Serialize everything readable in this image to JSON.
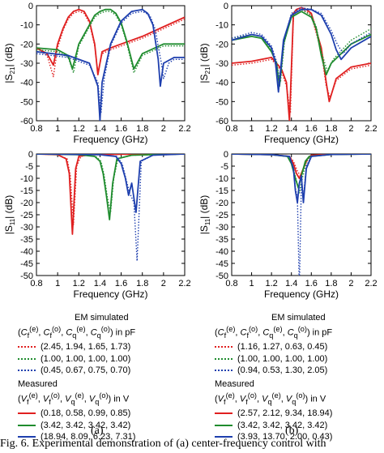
{
  "chart_data": [
    {
      "id": "a_s21",
      "type": "line",
      "xlabel": "Frequency (GHz)",
      "ylabel": "|S21| (dB)",
      "xlim": [
        0.8,
        2.2
      ],
      "ylim": [
        -60,
        0
      ],
      "xticks": [
        "0.8",
        "1",
        "1.2",
        "1.4",
        "1.6",
        "1.8",
        "2",
        "2.2"
      ],
      "yticks": [
        "0",
        "-10",
        "-20",
        "-30",
        "-40",
        "-50",
        "-60"
      ],
      "series": [
        {
          "color": "#e02020",
          "style": "solid",
          "x": [
            0.8,
            0.9,
            0.96,
            1.0,
            1.05,
            1.1,
            1.15,
            1.2,
            1.25,
            1.3,
            1.35,
            1.38,
            1.42,
            1.5,
            1.6,
            1.8,
            2.0,
            2.2
          ],
          "y": [
            -22,
            -25,
            -31,
            -20,
            -12,
            -6,
            -3,
            -2,
            -3,
            -8,
            -20,
            -36,
            -24,
            -22,
            -20,
            -16,
            -11,
            -6
          ]
        },
        {
          "color": "#e02020",
          "style": "dot",
          "x": [
            0.8,
            0.9,
            0.96,
            1.0,
            1.05,
            1.1,
            1.15,
            1.2,
            1.25,
            1.3,
            1.35,
            1.38,
            1.42,
            1.5,
            1.6,
            1.8,
            2.0,
            2.2
          ],
          "y": [
            -22,
            -26,
            -37,
            -22,
            -13,
            -7,
            -4,
            -3,
            -4,
            -9,
            -21,
            -35,
            -25,
            -23,
            -21,
            -17,
            -12,
            -7
          ]
        },
        {
          "color": "#1f8c2e",
          "style": "solid",
          "x": [
            0.8,
            1.0,
            1.1,
            1.14,
            1.2,
            1.3,
            1.35,
            1.4,
            1.45,
            1.5,
            1.55,
            1.6,
            1.65,
            1.72,
            1.8,
            2.0,
            2.2
          ],
          "y": [
            -22,
            -23,
            -26,
            -33,
            -20,
            -10,
            -5,
            -3,
            -2,
            -2,
            -4,
            -9,
            -18,
            -33,
            -25,
            -20,
            -20
          ]
        },
        {
          "color": "#1f8c2e",
          "style": "dot",
          "x": [
            0.8,
            1.0,
            1.1,
            1.15,
            1.2,
            1.3,
            1.35,
            1.4,
            1.45,
            1.5,
            1.55,
            1.6,
            1.65,
            1.72,
            1.8,
            2.0,
            2.2
          ],
          "y": [
            -23,
            -24,
            -27,
            -35,
            -21,
            -11,
            -6,
            -4,
            -3,
            -3,
            -5,
            -10,
            -19,
            -35,
            -26,
            -21,
            -21
          ]
        },
        {
          "color": "#1e3fae",
          "style": "solid",
          "x": [
            0.8,
            1.1,
            1.3,
            1.38,
            1.4,
            1.42,
            1.5,
            1.6,
            1.7,
            1.8,
            1.85,
            1.9,
            1.95,
            1.97,
            2.0,
            2.1,
            2.2
          ],
          "y": [
            -24,
            -26,
            -30,
            -42,
            -60,
            -40,
            -20,
            -8,
            -3,
            -2,
            -4,
            -10,
            -28,
            -42,
            -30,
            -27,
            -27
          ]
        },
        {
          "color": "#1e3fae",
          "style": "dot",
          "x": [
            0.8,
            1.1,
            1.3,
            1.38,
            1.41,
            1.44,
            1.5,
            1.6,
            1.7,
            1.8,
            1.87,
            1.92,
            1.98,
            2.0,
            2.05,
            2.1,
            2.2
          ],
          "y": [
            -25,
            -27,
            -31,
            -40,
            -56,
            -38,
            -21,
            -9,
            -4,
            -3,
            -5,
            -12,
            -30,
            -38,
            -30,
            -28,
            -28
          ]
        }
      ]
    },
    {
      "id": "b_s21",
      "type": "line",
      "xlabel": "Frequency (GHz)",
      "ylabel": "|S21| (dB)",
      "xlim": [
        0.8,
        2.2
      ],
      "ylim": [
        -60,
        0
      ],
      "xticks": [
        "0.8",
        "1",
        "1.2",
        "1.4",
        "1.6",
        "1.8",
        "2",
        "2.2"
      ],
      "yticks": [
        "0",
        "-10",
        "-20",
        "-30",
        "-40",
        "-50",
        "-60"
      ],
      "series": [
        {
          "color": "#e02020",
          "style": "solid",
          "x": [
            0.8,
            1.0,
            1.2,
            1.3,
            1.35,
            1.38,
            1.42,
            1.45,
            1.5,
            1.55,
            1.6,
            1.7,
            1.75,
            1.78,
            1.85,
            2.0,
            2.2
          ],
          "y": [
            -30,
            -29,
            -27,
            -33,
            -40,
            -60,
            -4,
            -2,
            -1,
            -2,
            -4,
            -22,
            -40,
            -50,
            -38,
            -32,
            -30
          ]
        },
        {
          "color": "#e02020",
          "style": "dot",
          "x": [
            0.8,
            1.0,
            1.2,
            1.3,
            1.35,
            1.39,
            1.42,
            1.45,
            1.5,
            1.55,
            1.6,
            1.7,
            1.75,
            1.79,
            1.85,
            2.0,
            2.2
          ],
          "y": [
            -31,
            -30,
            -28,
            -34,
            -42,
            -56,
            -5,
            -3,
            -2,
            -3,
            -5,
            -24,
            -42,
            -48,
            -39,
            -33,
            -31
          ]
        },
        {
          "color": "#1f8c2e",
          "style": "solid",
          "x": [
            0.8,
            1.0,
            1.1,
            1.2,
            1.25,
            1.28,
            1.32,
            1.4,
            1.5,
            1.6,
            1.65,
            1.7,
            1.75,
            1.8,
            2.0,
            2.2
          ],
          "y": [
            -18,
            -16,
            -17,
            -24,
            -30,
            -42,
            -20,
            -6,
            -3,
            -6,
            -12,
            -26,
            -36,
            -30,
            -20,
            -15
          ]
        },
        {
          "color": "#1f8c2e",
          "style": "dot",
          "x": [
            0.8,
            1.0,
            1.1,
            1.2,
            1.25,
            1.29,
            1.33,
            1.4,
            1.5,
            1.6,
            1.65,
            1.7,
            1.76,
            1.82,
            2.0,
            2.2
          ],
          "y": [
            -17,
            -15,
            -16,
            -23,
            -30,
            -40,
            -19,
            -5,
            -2,
            -5,
            -11,
            -24,
            -34,
            -28,
            -18,
            -12
          ]
        },
        {
          "color": "#1e3fae",
          "style": "solid",
          "x": [
            0.8,
            1.0,
            1.1,
            1.2,
            1.24,
            1.27,
            1.32,
            1.4,
            1.5,
            1.6,
            1.7,
            1.8,
            1.85,
            1.9,
            2.0,
            2.2
          ],
          "y": [
            -18,
            -15,
            -16,
            -22,
            -30,
            -45,
            -18,
            -5,
            -2,
            -2,
            -5,
            -15,
            -23,
            -28,
            -22,
            -16
          ]
        },
        {
          "color": "#1e3fae",
          "style": "dot",
          "x": [
            0.8,
            1.0,
            1.1,
            1.2,
            1.25,
            1.28,
            1.33,
            1.4,
            1.5,
            1.6,
            1.7,
            1.8,
            1.86,
            1.92,
            2.0,
            2.2
          ],
          "y": [
            -17,
            -14,
            -15,
            -21,
            -29,
            -42,
            -17,
            -4,
            -1,
            -2,
            -4,
            -13,
            -20,
            -25,
            -20,
            -14
          ]
        }
      ]
    },
    {
      "id": "a_s11",
      "type": "line",
      "xlabel": "Frequency (GHz)",
      "ylabel": "|S11| (dB)",
      "xlim": [
        0.8,
        2.2
      ],
      "ylim": [
        -50,
        0
      ],
      "xticks": [
        "0.8",
        "1",
        "1.2",
        "1.4",
        "1.6",
        "1.8",
        "2",
        "2.2"
      ],
      "yticks": [
        "0",
        "-5",
        "-10",
        "-15",
        "-20",
        "-25",
        "-30",
        "-35",
        "-40",
        "-45",
        "-50"
      ],
      "series": [
        {
          "color": "#e02020",
          "style": "solid",
          "x": [
            0.8,
            1.0,
            1.08,
            1.11,
            1.14,
            1.17,
            1.2,
            1.3,
            1.6,
            1.9,
            2.2
          ],
          "y": [
            0,
            -0.3,
            -2,
            -8,
            -33,
            -6,
            -1,
            -0.3,
            -0.1,
            -0.1,
            0
          ]
        },
        {
          "color": "#e02020",
          "style": "dot",
          "x": [
            0.8,
            1.0,
            1.09,
            1.12,
            1.15,
            1.18,
            1.22,
            1.3,
            1.6,
            1.9,
            2.2
          ],
          "y": [
            0,
            -0.3,
            -2,
            -9,
            -29,
            -5,
            -1,
            -0.3,
            -0.1,
            -0.1,
            0
          ]
        },
        {
          "color": "#1f8c2e",
          "style": "solid",
          "x": [
            0.8,
            1.2,
            1.35,
            1.4,
            1.43,
            1.46,
            1.49,
            1.52,
            1.56,
            1.7,
            2.2
          ],
          "y": [
            0,
            -0.3,
            -1,
            -3,
            -8,
            -17,
            -27,
            -12,
            -2,
            -0.5,
            0
          ]
        },
        {
          "color": "#1f8c2e",
          "style": "dot",
          "x": [
            0.8,
            1.2,
            1.36,
            1.41,
            1.44,
            1.47,
            1.5,
            1.53,
            1.57,
            1.7,
            2.2
          ],
          "y": [
            0,
            -0.3,
            -1,
            -3,
            -9,
            -18,
            -24,
            -10,
            -2,
            -0.5,
            0
          ]
        },
        {
          "color": "#1e3fae",
          "style": "solid",
          "x": [
            0.8,
            1.4,
            1.55,
            1.6,
            1.64,
            1.67,
            1.7,
            1.74,
            1.78,
            1.9,
            2.2
          ],
          "y": [
            0,
            -0.3,
            -1,
            -4,
            -10,
            -17,
            -12,
            -24,
            -3,
            -0.5,
            0
          ]
        },
        {
          "color": "#1e3fae",
          "style": "dot",
          "x": [
            0.8,
            1.4,
            1.56,
            1.61,
            1.65,
            1.68,
            1.72,
            1.75,
            1.79,
            1.9,
            2.2
          ],
          "y": [
            0,
            -0.3,
            -1,
            -4,
            -11,
            -16,
            -20,
            -44,
            -3,
            -0.5,
            0
          ]
        }
      ]
    },
    {
      "id": "b_s11",
      "type": "line",
      "xlabel": "Frequency (GHz)",
      "ylabel": "|S11| (dB)",
      "xlim": [
        0.8,
        2.2
      ],
      "ylim": [
        -50,
        0
      ],
      "xticks": [
        "0.8",
        "1",
        "1.2",
        "1.4",
        "1.6",
        "1.8",
        "2",
        "2.2"
      ],
      "yticks": [
        "0",
        "-5",
        "-10",
        "-15",
        "-20",
        "-25",
        "-30",
        "-35",
        "-40",
        "-45",
        "-50"
      ],
      "series": [
        {
          "color": "#e02020",
          "style": "solid",
          "x": [
            0.8,
            1.2,
            1.38,
            1.42,
            1.45,
            1.48,
            1.52,
            1.56,
            1.6,
            1.8,
            2.2
          ],
          "y": [
            0,
            -0.3,
            -1,
            -4,
            -8,
            -10,
            -6,
            -2,
            -0.5,
            -0.1,
            0
          ]
        },
        {
          "color": "#e02020",
          "style": "dot",
          "x": [
            0.8,
            1.2,
            1.38,
            1.42,
            1.46,
            1.49,
            1.53,
            1.57,
            1.6,
            1.8,
            2.2
          ],
          "y": [
            0,
            -0.3,
            -1,
            -3,
            -7,
            -9,
            -5,
            -2,
            -0.5,
            -0.1,
            0
          ]
        },
        {
          "color": "#1f8c2e",
          "style": "solid",
          "x": [
            0.8,
            1.2,
            1.36,
            1.4,
            1.44,
            1.47,
            1.5,
            1.54,
            1.58,
            1.8,
            2.2
          ],
          "y": [
            0,
            -0.3,
            -1,
            -4,
            -10,
            -14,
            -9,
            -3,
            -1,
            -0.2,
            0
          ]
        },
        {
          "color": "#1f8c2e",
          "style": "dot",
          "x": [
            0.8,
            1.2,
            1.36,
            1.41,
            1.45,
            1.48,
            1.51,
            1.55,
            1.59,
            1.8,
            2.2
          ],
          "y": [
            0,
            -0.3,
            -1,
            -4,
            -11,
            -16,
            -10,
            -3,
            -1,
            -0.2,
            0
          ]
        },
        {
          "color": "#1e3fae",
          "style": "solid",
          "x": [
            0.8,
            1.2,
            1.38,
            1.42,
            1.44,
            1.46,
            1.48,
            1.5,
            1.52,
            1.55,
            1.6,
            1.8,
            2.2
          ],
          "y": [
            0,
            -0.3,
            -1,
            -6,
            -15,
            -20,
            -12,
            -9,
            -20,
            -6,
            -1,
            -0.2,
            0
          ]
        },
        {
          "color": "#1e3fae",
          "style": "dot",
          "x": [
            0.8,
            1.2,
            1.38,
            1.42,
            1.44,
            1.46,
            1.48,
            1.5,
            1.52,
            1.55,
            1.6,
            1.8,
            2.2
          ],
          "y": [
            0,
            -0.3,
            -1,
            -6,
            -14,
            -18,
            -56,
            -12,
            -18,
            -5,
            -1,
            -0.2,
            0
          ]
        }
      ]
    }
  ],
  "legend_a": {
    "em_title": "EM simulated",
    "em_params": "(C_f^(e), C_f^(o), C_q^(e), C_q^(o)) in pF",
    "em_rows": [
      {
        "text": "(2.45, 1.94, 1.65, 1.73)",
        "color": "#e02020"
      },
      {
        "text": "(1.00, 1.00, 1.00, 1.00)",
        "color": "#1f8c2e"
      },
      {
        "text": "(0.45, 0.67, 0.75, 0.70)",
        "color": "#1e3fae"
      }
    ],
    "meas_title": "Measured",
    "meas_params": "(V_f^(e), V_f^(o), V_q^(e), V_q^(o)) in V",
    "meas_rows": [
      {
        "text": "(0.18, 0.58, 0.99, 0.85)",
        "color": "#e02020"
      },
      {
        "text": "(3.42, 3.42, 3.42, 3.42)",
        "color": "#1f8c2e"
      },
      {
        "text": "(18.94, 8.09, 6.23, 7.31)",
        "color": "#1e3fae"
      }
    ]
  },
  "legend_b": {
    "em_title": "EM simulated",
    "em_params": "(C_f^(e), C_f^(o), C_q^(e), C_q^(o)) in pF",
    "em_rows": [
      {
        "text": "(1.16, 1.27, 0.63, 0.45)",
        "color": "#e02020"
      },
      {
        "text": "(1.00, 1.00, 1.00, 1.00)",
        "color": "#1f8c2e"
      },
      {
        "text": "(0.94, 0.53, 1.30, 2.05)",
        "color": "#1e3fae"
      }
    ],
    "meas_title": "Measured",
    "meas_params": "(V_f^(e), V_f^(o), V_q^(e), V_q^(o)) in V",
    "meas_rows": [
      {
        "text": "(2.57, 2.12, 9.34, 18.94)",
        "color": "#e02020"
      },
      {
        "text": "(3.42, 3.42, 3.42, 3.42)",
        "color": "#1f8c2e"
      },
      {
        "text": "(3.93, 13.70, 2.00, 0.43)",
        "color": "#1e3fae"
      }
    ]
  },
  "panel_labels": {
    "a": "(a)",
    "b": "(b)"
  },
  "caption": "Fig. 6.   Experimental demonstration of (a) center-frequency control with"
}
